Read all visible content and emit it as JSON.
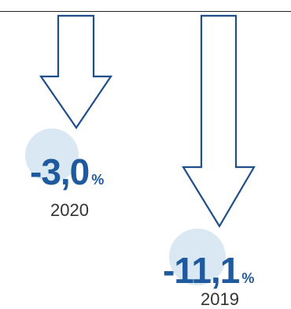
{
  "colors": {
    "arrow": "#1f4e89",
    "value_text": "#1f5a9e",
    "bubble": "#d9e8f3",
    "year_text": "#333333"
  },
  "chart_data": {
    "type": "bar",
    "categories": [
      "2020",
      "2019"
    ],
    "values": [
      -3.0,
      -11.1
    ],
    "items": [
      {
        "year": "2020",
        "value": -3.0,
        "label": "-3,0",
        "unit": "%"
      },
      {
        "year": "2019",
        "value": -11.1,
        "label": "-11,1",
        "unit": "%"
      }
    ],
    "title": "",
    "xlabel": "",
    "ylabel": ""
  }
}
